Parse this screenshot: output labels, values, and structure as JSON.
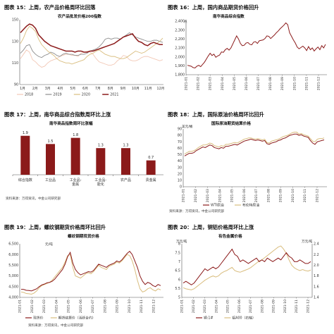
{
  "chart_data": [
    {
      "id": "c15",
      "figure_title": "图表 15：上周，农产品价格周环比回落",
      "title": "农产品批发价格200指数",
      "type": "line",
      "x_ticks": [
        "1月",
        "2月",
        "3月",
        "4月",
        "5月",
        "6月",
        "7月",
        "8月",
        "9月",
        "10月",
        "11月",
        "12月"
      ],
      "ylim": [
        90,
        150
      ],
      "yticks": [
        90,
        110,
        130,
        150
      ],
      "series": [
        {
          "name": "2018",
          "color": "#f2c8b6",
          "width": 0.9,
          "values": [
            114,
            118,
            122,
            120,
            113,
            111,
            108,
            106,
            107,
            110,
            112,
            113,
            114,
            116,
            117,
            118,
            118,
            117,
            117,
            116,
            119,
            120,
            121,
            120,
            118,
            114,
            111,
            110,
            109,
            108,
            108,
            109,
            112,
            114,
            117,
            116,
            113,
            112,
            112,
            113,
            115,
            116,
            116,
            115,
            114,
            113,
            112,
            113
          ]
        },
        {
          "name": "2019",
          "color": "#8e8e8e",
          "width": 0.9,
          "values": [
            119,
            122,
            126,
            127,
            121,
            118,
            116,
            115,
            117,
            118,
            120,
            119,
            117,
            116,
            118,
            119,
            118,
            118,
            117,
            117,
            118,
            118,
            119,
            121,
            122,
            123,
            125,
            128,
            132,
            133,
            132,
            133,
            133,
            132,
            134,
            136,
            138,
            136,
            134,
            133,
            132,
            131,
            130,
            130,
            131,
            131,
            130,
            129
          ]
        },
        {
          "name": "2020",
          "color": "#d9bd7e",
          "width": 0.9,
          "values": [
            128,
            133,
            140,
            144,
            142,
            139,
            132,
            127,
            124,
            121,
            119,
            117,
            114,
            112,
            111,
            110,
            110,
            109,
            110,
            111,
            112,
            113,
            116,
            118,
            119,
            121,
            122,
            120,
            118,
            117,
            116,
            116,
            115,
            114,
            114,
            115,
            117,
            119,
            121,
            120,
            119,
            120,
            122,
            124,
            126,
            128,
            130,
            133
          ]
        },
        {
          "name": "2021",
          "color": "#8b1a1a",
          "width": 1.5,
          "values": [
            138,
            141,
            144,
            146,
            145,
            142,
            136,
            133,
            130,
            128,
            126,
            125,
            124,
            123,
            122,
            121,
            121,
            121,
            120,
            121,
            121,
            120,
            120,
            121,
            121,
            122,
            123,
            124,
            125,
            126,
            127,
            128,
            130,
            132,
            134,
            135,
            136,
            137,
            133,
            130,
            129,
            127,
            126,
            128,
            129,
            128,
            127,
            127
          ]
        }
      ]
    },
    {
      "id": "c16",
      "figure_title": "图表 16：上周，国内商品期货价格回升",
      "title": "南华商品综合指数",
      "unit": "点",
      "type": "line",
      "x_ticks": [
        "2021-01",
        "2021-02",
        "2021-03",
        "2021-04",
        "2021-05",
        "2021-06",
        "2021-07",
        "2021-08",
        "2021-09",
        "2021-10",
        "2021-11",
        "2021-12"
      ],
      "ylim": [
        1800,
        2400
      ],
      "yticks": [
        1800,
        1900,
        2000,
        2100,
        2200,
        2300,
        2400
      ],
      "series": [
        {
          "name": "",
          "color": "#8b1a1a",
          "width": 1.0,
          "values": [
            1905,
            1900,
            1895,
            1880,
            1875,
            1895,
            1905,
            1890,
            1915,
            1940,
            1975,
            2010,
            2040,
            2015,
            2030,
            1995,
            2010,
            2020,
            2055,
            2050,
            2080,
            2095,
            2075,
            2100,
            2145,
            2190,
            2235,
            2200,
            2150,
            2125,
            2130,
            2155,
            2160,
            2140,
            2135,
            2165,
            2170,
            2150,
            2180,
            2185,
            2190,
            2205,
            2235,
            2230,
            2205,
            2225,
            2245,
            2270,
            2290,
            2315,
            2335,
            2355,
            2380,
            2360,
            2270,
            2230,
            2190,
            2155,
            2110,
            2090,
            2105,
            2120,
            2100,
            2070,
            2115,
            2080,
            2100,
            2065,
            2090,
            2110,
            2080,
            2125,
            2100,
            2140
          ]
        }
      ]
    },
    {
      "id": "c17",
      "figure_title": "图表 17：上周，南华商品综合指数周环比上涨",
      "title": "南华商品指数周环比涨幅",
      "type": "bar",
      "categories": [
        "综合指数",
        "工业品",
        "工业品-金属",
        "工业品-能化",
        "农产品",
        "贵金属"
      ],
      "values": [
        1.9,
        1.5,
        1.8,
        1.3,
        1.3,
        0.7
      ],
      "value_labels": [
        "1.9",
        "1.5",
        "1.8",
        "1.3",
        "1.3",
        "0.7"
      ],
      "ylim": [
        0,
        2.2
      ],
      "color": "#8b1a1a",
      "source": "资料来源：万得资讯，中金公司研究部"
    },
    {
      "id": "c18",
      "figure_title": "图表 18：上周，国际原油价格周环比回升",
      "title": "国际原油期货结算价格",
      "unit": "美元/桶",
      "type": "line",
      "x_ticks": [
        "2021-01",
        "2021-02",
        "2021-03",
        "2021-04",
        "2021-05",
        "2021-06",
        "2021-07",
        "2021-08",
        "2021-09",
        "2021-10",
        "2021-11",
        "2021-12"
      ],
      "ylim": [
        0,
        90
      ],
      "yticks": [
        0,
        10,
        20,
        30,
        40,
        50,
        60,
        70,
        80,
        90
      ],
      "series": [
        {
          "name": "WTI原油",
          "color": "#8b1a1a",
          "width": 1.0,
          "values": [
            48,
            50,
            52,
            52,
            53,
            56,
            58,
            60,
            62,
            61,
            63,
            65,
            64,
            61,
            60,
            59,
            61,
            60,
            63,
            63,
            64,
            65,
            66,
            65,
            67,
            69,
            71,
            72,
            73,
            74,
            73,
            72,
            73,
            72,
            71,
            72,
            67,
            66,
            68,
            69,
            70,
            72,
            73,
            75,
            76,
            78,
            80,
            81,
            82,
            82,
            80,
            81,
            79,
            78,
            77,
            72,
            68,
            66,
            70,
            71,
            72,
            73
          ]
        },
        {
          "name": "布伦特原油",
          "color": "#d9bd7e",
          "width": 1.0,
          "values": [
            51,
            53,
            55,
            55,
            56,
            58,
            61,
            63,
            65,
            65,
            66,
            68,
            67,
            64,
            63,
            62,
            64,
            63,
            66,
            66,
            67,
            68,
            69,
            68,
            70,
            72,
            74,
            75,
            76,
            76,
            75,
            74,
            75,
            74,
            73,
            74,
            69,
            68,
            71,
            72,
            73,
            74,
            76,
            78,
            79,
            80,
            82,
            84,
            85,
            85,
            82,
            83,
            81,
            80,
            79,
            75,
            71,
            70,
            74,
            75,
            75,
            76
          ]
        }
      ],
      "source": "资料来源：万得资讯，中金公司研究部"
    },
    {
      "id": "c19",
      "figure_title": "图表 19：上周，螺纹钢期货价格周环比回升",
      "title": "螺纹钢期现货价格",
      "unit": "元/吨",
      "type": "line",
      "x_ticks": [
        "2021-01",
        "2021-02",
        "2021-03",
        "2021-04",
        "2021-05",
        "2021-06",
        "2021-07",
        "2021-08",
        "2021-09",
        "2021-10",
        "2021-11",
        "2021-12"
      ],
      "ylim": [
        4000,
        6500
      ],
      "yticks": [
        4000,
        4500,
        5000,
        5500,
        6000,
        6500
      ],
      "series": [
        {
          "name": "现货价",
          "color": "#8b1a1a",
          "width": 1.0,
          "values": [
            4380,
            4370,
            4330,
            4320,
            4300,
            4350,
            4400,
            4500,
            4580,
            4620,
            4680,
            4700,
            4750,
            4850,
            5000,
            5150,
            5300,
            5550,
            5900,
            6100,
            5600,
            5300,
            5150,
            5050,
            5100,
            5150,
            5200,
            5180,
            5250,
            5400,
            5550,
            5500,
            5450,
            5400,
            5500,
            5550,
            5600,
            5700,
            5650,
            5750,
            5900,
            6050,
            6150,
            6000,
            5700,
            5400,
            5000,
            4750,
            4600,
            4700,
            4650,
            4550,
            4500,
            4600,
            4550
          ]
        },
        {
          "name": "期货结算价（活跃合约）",
          "color": "#d9bd7e",
          "width": 1.0,
          "values": [
            4250,
            4230,
            4180,
            4170,
            4150,
            4200,
            4300,
            4450,
            4550,
            4600,
            4650,
            4700,
            4800,
            4950,
            5100,
            5250,
            5400,
            5650,
            5950,
            6000,
            5400,
            5000,
            4950,
            4900,
            5000,
            5100,
            5150,
            5100,
            5200,
            5350,
            5500,
            5400,
            5350,
            5300,
            5450,
            5500,
            5550,
            5650,
            5600,
            5700,
            5850,
            6000,
            5950,
            5700,
            5300,
            4800,
            4400,
            4250,
            4300,
            4400,
            4450,
            4350,
            4300,
            4400,
            4350
          ]
        }
      ],
      "source": "资料来源：万得资讯，中金公司研究部"
    },
    {
      "id": "c20",
      "figure_title": "图表 20：上周，铜铝价格周环比上涨",
      "title": "有色金属价格",
      "unit_left": "万元/吨",
      "unit_right": "万元/吨",
      "type": "line",
      "x_ticks": [
        "2021-01",
        "2021-02",
        "2021-03",
        "2021-04",
        "2021-05",
        "2021-06",
        "2021-07",
        "2021-08",
        "2021-09",
        "2021-10",
        "2021-11",
        "2021-12"
      ],
      "ylim_left": [
        5,
        8
      ],
      "yticks_left": [
        5,
        5.5,
        6,
        6.5,
        7,
        7.5,
        8
      ],
      "ylim_right": [
        1.4,
        2.4
      ],
      "yticks_right": [
        1.4,
        1.6,
        1.8,
        2.0,
        2.2,
        2.4
      ],
      "series": [
        {
          "name": "铜:1#",
          "axis": "left",
          "color": "#8b1a1a",
          "width": 1.0,
          "values": [
            5.8,
            5.9,
            5.8,
            5.7,
            5.8,
            6.0,
            6.2,
            6.4,
            6.6,
            6.5,
            6.6,
            6.7,
            6.6,
            6.7,
            6.9,
            7.1,
            7.3,
            7.5,
            7.7,
            7.4,
            7.3,
            7.0,
            7.1,
            7.0,
            6.9,
            7.0,
            7.1,
            7.2,
            7.0,
            7.1,
            7.0,
            7.2,
            7.1,
            7.0,
            7.1,
            7.2,
            7.1,
            7.3,
            7.5,
            7.3,
            7.2,
            7.0,
            7.0,
            7.1,
            7.0,
            6.9,
            6.9,
            7.0
          ]
        },
        {
          "name": "铝A00（右轴）",
          "axis": "right",
          "color": "#d9bd7e",
          "width": 1.0,
          "values": [
            1.58,
            1.56,
            1.55,
            1.54,
            1.56,
            1.6,
            1.64,
            1.68,
            1.72,
            1.75,
            1.78,
            1.8,
            1.78,
            1.8,
            1.85,
            1.88,
            1.9,
            1.93,
            1.96,
            1.9,
            1.88,
            1.87,
            1.89,
            1.91,
            1.93,
            1.96,
            2.0,
            2.04,
            2.08,
            2.1,
            2.14,
            2.18,
            2.22,
            2.26,
            2.3,
            2.34,
            2.36,
            2.3,
            2.22,
            2.1,
            2.0,
            1.95,
            1.92,
            1.9,
            1.92,
            1.9,
            1.89,
            1.91
          ]
        }
      ]
    }
  ],
  "source_left_bottom": "资料来源：万得资讯，中金公司研究部"
}
